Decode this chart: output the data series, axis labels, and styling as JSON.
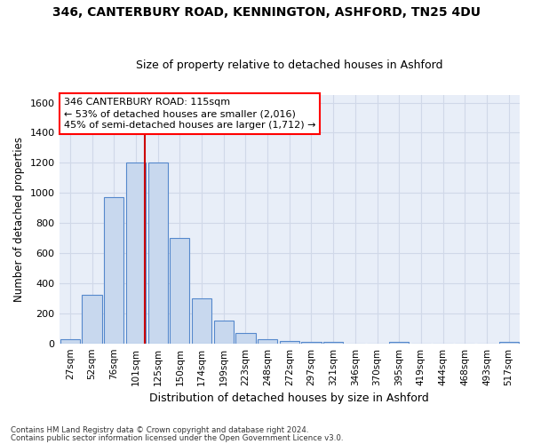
{
  "title_line1": "346, CANTERBURY ROAD, KENNINGTON, ASHFORD, TN25 4DU",
  "title_line2": "Size of property relative to detached houses in Ashford",
  "xlabel": "Distribution of detached houses by size in Ashford",
  "ylabel": "Number of detached properties",
  "bar_color": "#c8d8ee",
  "bar_edge_color": "#5588cc",
  "background_color": "#e8eef8",
  "grid_color": "#d0d8e8",
  "categories": [
    "27sqm",
    "52sqm",
    "76sqm",
    "101sqm",
    "125sqm",
    "150sqm",
    "174sqm",
    "199sqm",
    "223sqm",
    "248sqm",
    "272sqm",
    "297sqm",
    "321sqm",
    "346sqm",
    "370sqm",
    "395sqm",
    "419sqm",
    "444sqm",
    "468sqm",
    "493sqm",
    "517sqm"
  ],
  "values": [
    30,
    320,
    970,
    1200,
    1200,
    700,
    300,
    150,
    70,
    25,
    15,
    12,
    8,
    0,
    0,
    12,
    0,
    0,
    0,
    0,
    12
  ],
  "ylim": [
    0,
    1650
  ],
  "yticks": [
    0,
    200,
    400,
    600,
    800,
    1000,
    1200,
    1400,
    1600
  ],
  "annotation_box_text": "346 CANTERBURY ROAD: 115sqm\n← 53% of detached houses are smaller (2,016)\n45% of semi-detached houses are larger (1,712) →",
  "vline_x_index": 3,
  "vline_color": "#cc0000",
  "footer_line1": "Contains HM Land Registry data © Crown copyright and database right 2024.",
  "footer_line2": "Contains public sector information licensed under the Open Government Licence v3.0."
}
